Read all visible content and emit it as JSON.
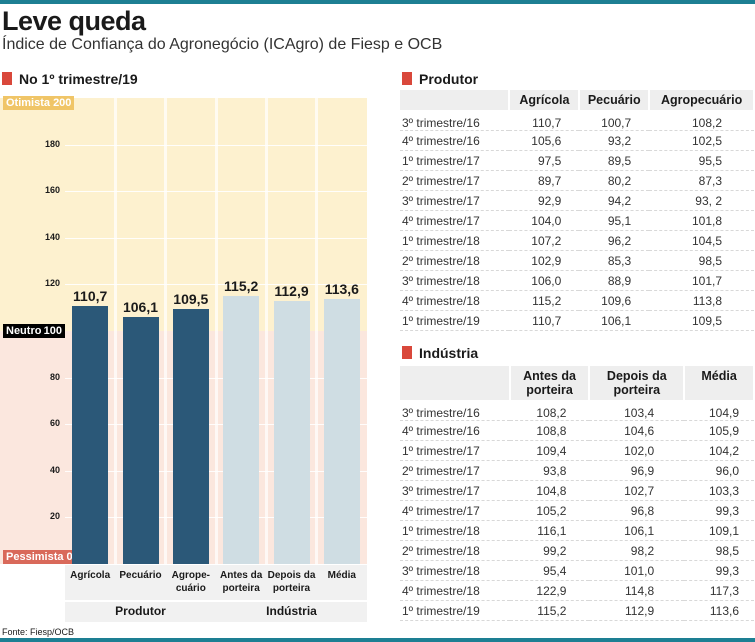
{
  "title": "Leve queda",
  "subtitle": "Índice de Confiança do Agronegócio (ICAgro) de Fiesp e OCB",
  "chart_section": "No 1º trimestre/19",
  "source": "Fonte: Fiesp/OCB",
  "colors": {
    "accent": "#d9483b",
    "produtor_bar": "#2b5878",
    "industria_bar": "#cfdde3",
    "optimist_band": "#fdf1cf",
    "pessimist_band": "#fbe7de",
    "rule": "#1d7f93"
  },
  "chart_data": {
    "type": "bar",
    "categories": [
      "Agrícola",
      "Pecuário",
      "Agrope-\ncuário",
      "Antes da\nporteira",
      "Depois da\nporteira",
      "Média"
    ],
    "values": [
      110.7,
      106.1,
      109.5,
      115.2,
      112.9,
      113.6
    ],
    "value_labels": [
      "110,7",
      "106,1",
      "109,5",
      "115,2",
      "112,9",
      "113,6"
    ],
    "groups": [
      {
        "name": "Produtor",
        "count": 3
      },
      {
        "name": "Indústria",
        "count": 3
      }
    ],
    "ylim": [
      0,
      200
    ],
    "yticks": [
      "20",
      "40",
      "60",
      "80",
      "120",
      "140",
      "160",
      "180"
    ],
    "ytick_values": [
      20,
      40,
      60,
      80,
      120,
      140,
      160,
      180
    ],
    "markers": {
      "top": "Otimista 200",
      "middle_label": "Neutro",
      "middle_value": "100",
      "bottom": "Pessimista 0"
    },
    "grid": true
  },
  "produtor": {
    "title": "Produtor",
    "headers": [
      "",
      "Agrícola",
      "Pecuário",
      "Agropecuário"
    ],
    "rows": [
      [
        "3º trimestre/16",
        "110,7",
        "100,7",
        "108,2"
      ],
      [
        "4º trimestre/16",
        "105,6",
        "93,2",
        "102,5"
      ],
      [
        "1º trimestre/17",
        "97,5",
        "89,5",
        "95,5"
      ],
      [
        "2º trimestre/17",
        "89,7",
        "80,2",
        "87,3"
      ],
      [
        "3º trimestre/17",
        "92,9",
        "94,2",
        "93, 2"
      ],
      [
        "4º trimestre/17",
        "104,0",
        "95,1",
        "101,8"
      ],
      [
        "1º trimestre/18",
        "107,2",
        "96,2",
        "104,5"
      ],
      [
        "2º trimestre/18",
        "102,9",
        "85,3",
        "98,5"
      ],
      [
        "3º trimestre/18",
        "106,0",
        "88,9",
        "101,7"
      ],
      [
        "4º trimestre/18",
        "115,2",
        "109,6",
        "113,8"
      ],
      [
        "1º trimestre/19",
        "110,7",
        "106,1",
        "109,5"
      ]
    ]
  },
  "industria": {
    "title": "Indústria",
    "headers": [
      "",
      "Antes da porteira",
      "Depois da porteira",
      "Média"
    ],
    "rows": [
      [
        "3º trimestre/16",
        "108,2",
        "103,4",
        "104,9"
      ],
      [
        "4º trimestre/16",
        "108,8",
        "104,6",
        "105,9"
      ],
      [
        "1º trimestre/17",
        "109,4",
        "102,0",
        "104,2"
      ],
      [
        "2º trimestre/17",
        "93,8",
        "96,9",
        "96,0"
      ],
      [
        "3º trimestre/17",
        "104,8",
        "102,7",
        "103,3"
      ],
      [
        "4º trimestre/17",
        "105,2",
        "96,8",
        "99,3"
      ],
      [
        "1º trimestre/18",
        "116,1",
        "106,1",
        "109,1"
      ],
      [
        "2º trimestre/18",
        "99,2",
        "98,2",
        "98,5"
      ],
      [
        "3º trimestre/18",
        "95,4",
        "101,0",
        "99,3"
      ],
      [
        "4º trimestre/18",
        "122,9",
        "114,8",
        "117,3"
      ],
      [
        "1º trimestre/19",
        "115,2",
        "112,9",
        "113,6"
      ]
    ]
  }
}
